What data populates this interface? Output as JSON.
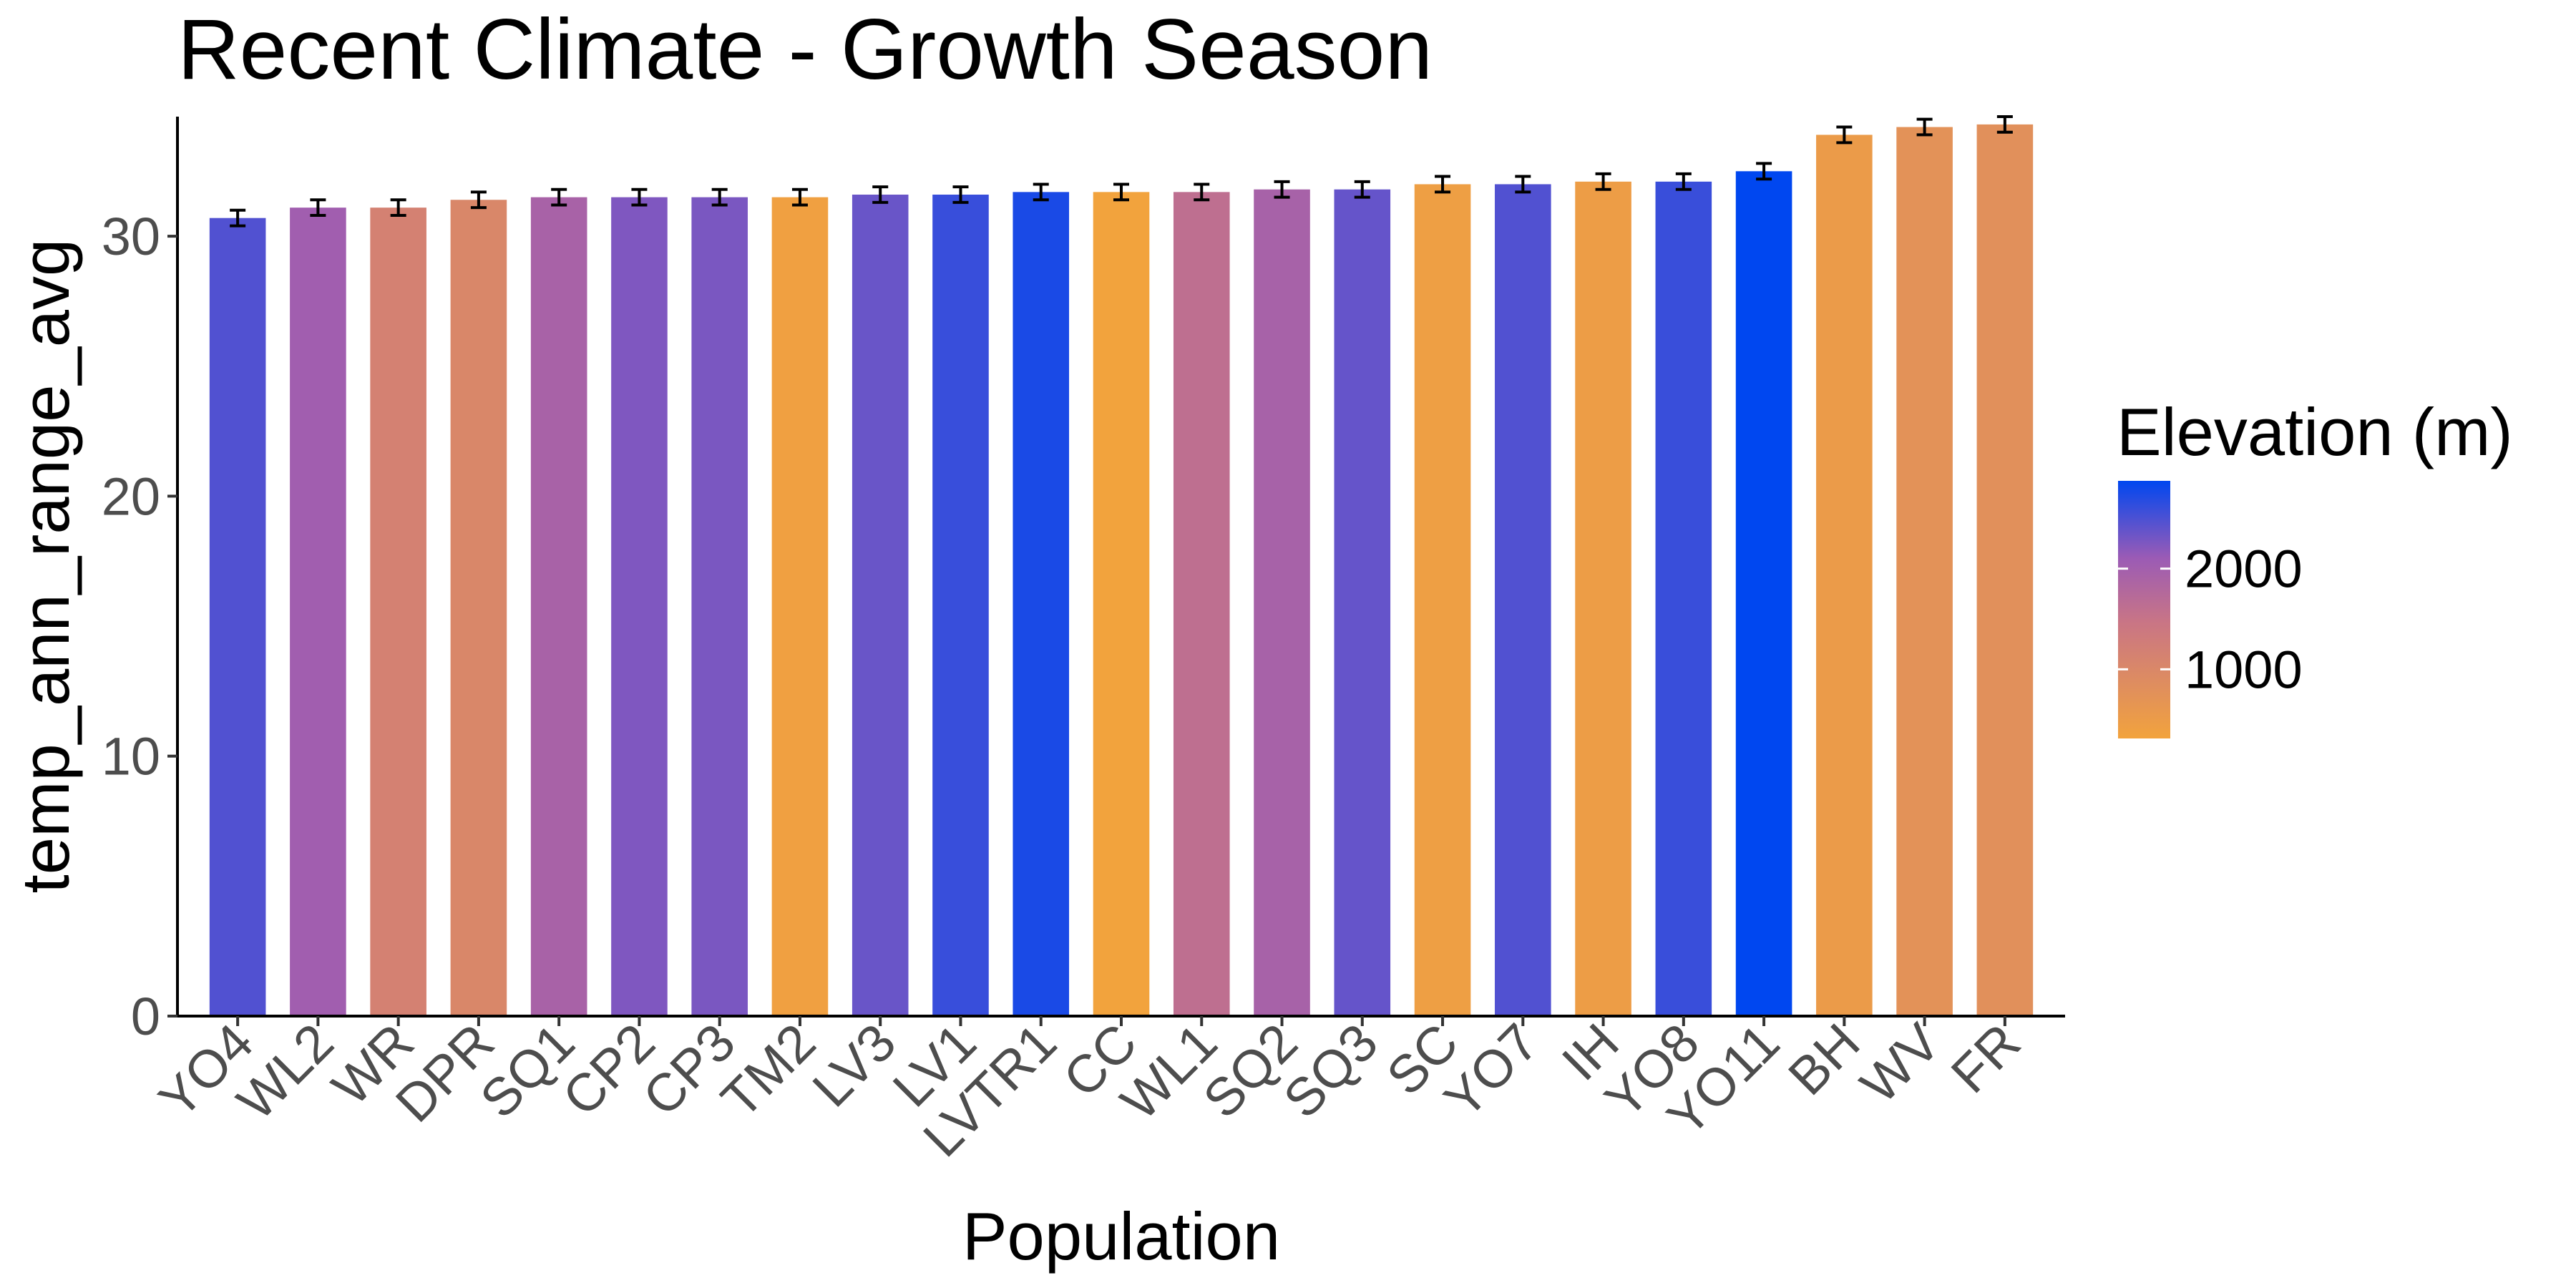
{
  "chart_data": {
    "type": "bar",
    "title": "Recent Climate - Growth Season",
    "xlabel": "Population",
    "ylabel": "temp_ann_range_avg",
    "ylim": [
      0,
      34.6
    ],
    "yticks": [
      0,
      10,
      20,
      30
    ],
    "grid": false,
    "legend": {
      "title": "Elevation (m)",
      "placement": "right",
      "type": "gradient",
      "min_value": 313,
      "max_value": 2872,
      "ticks": [
        1000,
        2000
      ],
      "low_color": "#f2a33d",
      "mid_color": "#9b5bb5",
      "high_color": "#0047f0"
    },
    "categories": [
      "YO4",
      "WL2",
      "WR",
      "DPR",
      "SQ1",
      "CP2",
      "CP3",
      "TM2",
      "LV3",
      "LV1",
      "LVTR1",
      "CC",
      "WL1",
      "SQ2",
      "SQ3",
      "SC",
      "YO7",
      "IH",
      "YO8",
      "YO11",
      "BH",
      "WV",
      "FR"
    ],
    "values": [
      30.7,
      31.1,
      31.1,
      31.4,
      31.5,
      31.5,
      31.5,
      31.5,
      31.6,
      31.6,
      31.7,
      31.7,
      31.7,
      31.8,
      31.8,
      32.0,
      32.0,
      32.1,
      32.1,
      32.5,
      33.9,
      34.2,
      34.3
    ],
    "errors": [
      0.3,
      0.3,
      0.3,
      0.3,
      0.3,
      0.3,
      0.3,
      0.3,
      0.3,
      0.3,
      0.3,
      0.3,
      0.3,
      0.3,
      0.3,
      0.3,
      0.3,
      0.3,
      0.3,
      0.3,
      0.3,
      0.3,
      0.3
    ],
    "elevation": [
      2470,
      2020,
      1158,
      1019,
      1921,
      2244,
      2266,
      379,
      2353,
      2593,
      2741,
      313,
      1614,
      1934,
      2373,
      422,
      2470,
      454,
      2591,
      2872,
      511,
      748,
      787
    ]
  }
}
